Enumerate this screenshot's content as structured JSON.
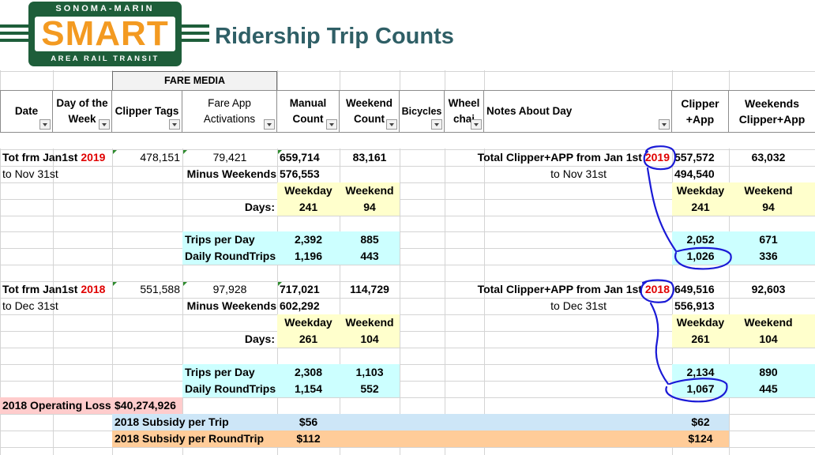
{
  "logo": {
    "top_text": "SONOMA-MARIN",
    "main_text": "SMART",
    "bottom_text": "AREA RAIL TRANSIT"
  },
  "title": "Ridership Trip Counts",
  "fare_media": "FARE MEDIA",
  "headers": {
    "date": "Date",
    "day_of_week": [
      "Day of the",
      "Week"
    ],
    "clipper_tags": "Clipper Tags",
    "fare_app": [
      "Fare App",
      "Activations"
    ],
    "manual": [
      "Manual",
      "Count"
    ],
    "weekend": [
      "Weekend",
      "Count"
    ],
    "bicycles": "Bicycles",
    "wheel": [
      "Wheel",
      "chai"
    ],
    "notes": "Notes About Day",
    "clipper_app": [
      "Clipper",
      "+App"
    ],
    "weekends_clipper": [
      "Weekends",
      "Clipper+App"
    ]
  },
  "y2019": {
    "label": "Tot frm Jan1st ",
    "year": "2019",
    "sub": "to Nov 31st",
    "clipper": "478,151",
    "fare_app": "79,421",
    "manual": "659,714",
    "weekend": "83,161",
    "minus_weekends_label": "Minus Weekends",
    "minus_weekends": "576,553",
    "weekday_label": "Weekday",
    "weekend_label": "Weekend",
    "days_label": "Days:",
    "weekday_days": "241",
    "weekend_days": "94",
    "trips_label": "Trips per Day",
    "trips_weekday": "2,392",
    "trips_weekend": "885",
    "rt_label": "Daily RoundTrips",
    "rt_weekday": "1,196",
    "rt_weekend": "443",
    "total_label": "Total Clipper+APP from Jan 1st ",
    "total_sub": "to Nov 31st",
    "cap_total": "557,572",
    "cap_weekend_total": "63,032",
    "cap_minus": "494,540",
    "cap_weekday_days": "241",
    "cap_weekend_days": "94",
    "cap_trips_weekday": "2,052",
    "cap_trips_weekend": "671",
    "cap_rt_weekday": "1,026",
    "cap_rt_weekend": "336"
  },
  "y2018": {
    "label": "Tot frm Jan1st ",
    "year": "2018",
    "sub": "to Dec 31st",
    "clipper": "551,588",
    "fare_app": "97,928",
    "manual": "717,021",
    "weekend": "114,729",
    "minus_weekends_label": "Minus Weekends",
    "minus_weekends": "602,292",
    "weekday_label": "Weekday",
    "weekend_label": "Weekend",
    "days_label": "Days:",
    "weekday_days": "261",
    "weekend_days": "104",
    "trips_label": "Trips per Day",
    "trips_weekday": "2,308",
    "trips_weekend": "1,103",
    "rt_label": "Daily RoundTrips",
    "rt_weekday": "1,154",
    "rt_weekend": "552",
    "total_label": "Total Clipper+APP from Jan 1st ",
    "total_sub": "to Dec 31st",
    "cap_total": "649,516",
    "cap_weekend_total": "92,603",
    "cap_minus": "556,913",
    "cap_weekday_days": "261",
    "cap_weekend_days": "104",
    "cap_trips_weekday": "2,134",
    "cap_trips_weekend": "890",
    "cap_rt_weekday": "1,067",
    "cap_rt_weekend": "445"
  },
  "loss": {
    "label": "2018 Operating Loss",
    "value": "$40,274,926"
  },
  "subsidy_trip": {
    "label": "2018 Subsidy per Trip",
    "value": "$56",
    "cap_value": "$62"
  },
  "subsidy_rt": {
    "label": "2018 Subsidy per RoundTrip",
    "value": "$112",
    "cap_value": "$124"
  },
  "colors": {
    "yellow": "#ffffcc",
    "cyan": "#ccffff",
    "pink": "#ffcccc",
    "blue": "#cde6f7",
    "orange": "#ffcc99",
    "logo_green": "#1e5e3a",
    "logo_orange": "#f39a21",
    "title": "#2f5f66",
    "ink": "#1a1ad6"
  }
}
